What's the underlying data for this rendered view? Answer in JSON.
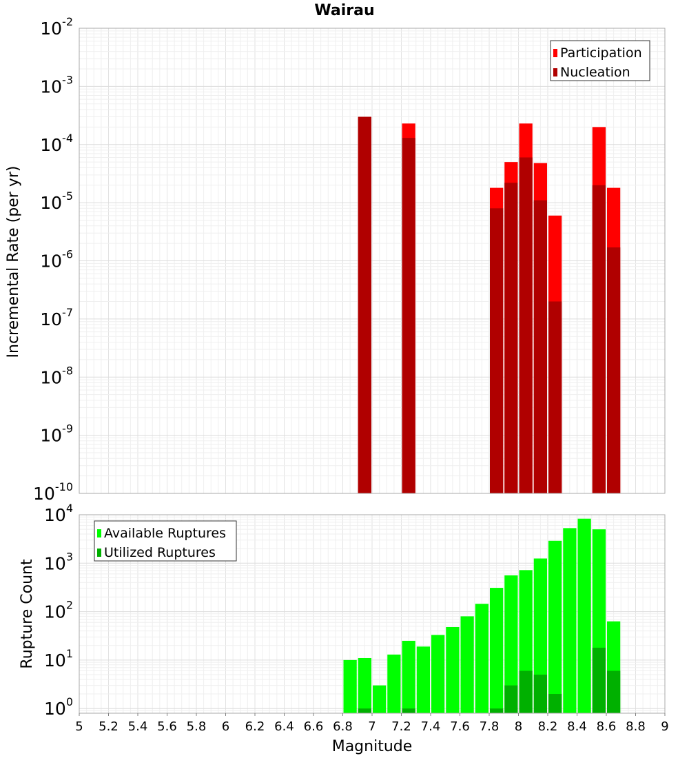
{
  "title": "Wairau",
  "chart_data": [
    {
      "type": "bar",
      "title": "Wairau",
      "ylabel": "Incremental Rate (per yr)",
      "yscale": "log",
      "ylim": [
        1e-10,
        0.01
      ],
      "y_ticks": [
        {
          "base": "10",
          "exp": "-10"
        },
        {
          "base": "10",
          "exp": "-9"
        },
        {
          "base": "10",
          "exp": "-8"
        },
        {
          "base": "10",
          "exp": "-7"
        },
        {
          "base": "10",
          "exp": "-6"
        },
        {
          "base": "10",
          "exp": "-5"
        },
        {
          "base": "10",
          "exp": "-4"
        },
        {
          "base": "10",
          "exp": "-3"
        },
        {
          "base": "10",
          "exp": "-2"
        }
      ],
      "grid": true,
      "legend_position": "top-right",
      "series": [
        {
          "name": "Participation",
          "color": "#ff0000",
          "points": [
            {
              "x": 6.95,
              "y": 0.0003
            },
            {
              "x": 7.25,
              "y": 0.00023
            },
            {
              "x": 7.85,
              "y": 1.8e-05
            },
            {
              "x": 7.95,
              "y": 5e-05
            },
            {
              "x": 8.05,
              "y": 0.00023
            },
            {
              "x": 8.15,
              "y": 4.8e-05
            },
            {
              "x": 8.25,
              "y": 6e-06
            },
            {
              "x": 8.55,
              "y": 0.0002
            },
            {
              "x": 8.65,
              "y": 1.8e-05
            }
          ]
        },
        {
          "name": "Nucleation",
          "color": "#b00000",
          "points": [
            {
              "x": 6.95,
              "y": 0.0003
            },
            {
              "x": 7.25,
              "y": 0.00013
            },
            {
              "x": 7.85,
              "y": 8e-06
            },
            {
              "x": 7.95,
              "y": 2.2e-05
            },
            {
              "x": 8.05,
              "y": 6e-05
            },
            {
              "x": 8.15,
              "y": 1.1e-05
            },
            {
              "x": 8.25,
              "y": 2e-07
            },
            {
              "x": 8.55,
              "y": 2e-05
            },
            {
              "x": 8.65,
              "y": 1.7e-06
            }
          ]
        }
      ]
    },
    {
      "type": "bar",
      "xlabel": "Magnitude",
      "ylabel": "Rupture Count",
      "yscale": "log",
      "xlim": [
        5,
        9
      ],
      "ylim": [
        0.8,
        10000
      ],
      "x_ticks": [
        "5",
        "5.2",
        "5.4",
        "5.6",
        "5.8",
        "6",
        "6.2",
        "6.4",
        "6.6",
        "6.8",
        "7",
        "7.2",
        "7.4",
        "7.6",
        "7.8",
        "8",
        "8.2",
        "8.4",
        "8.6",
        "8.8",
        "9"
      ],
      "y_ticks": [
        {
          "base": "10",
          "exp": "0"
        },
        {
          "base": "10",
          "exp": "1"
        },
        {
          "base": "10",
          "exp": "2"
        },
        {
          "base": "10",
          "exp": "3"
        },
        {
          "base": "10",
          "exp": "4"
        }
      ],
      "grid": true,
      "legend_position": "top-left",
      "series": [
        {
          "name": "Available Ruptures",
          "color": "#00ff00",
          "points": [
            {
              "x": 6.85,
              "y": 10
            },
            {
              "x": 6.95,
              "y": 11
            },
            {
              "x": 7.05,
              "y": 3
            },
            {
              "x": 7.15,
              "y": 13
            },
            {
              "x": 7.25,
              "y": 25
            },
            {
              "x": 7.35,
              "y": 19
            },
            {
              "x": 7.45,
              "y": 33
            },
            {
              "x": 7.55,
              "y": 48
            },
            {
              "x": 7.65,
              "y": 80
            },
            {
              "x": 7.75,
              "y": 145
            },
            {
              "x": 7.85,
              "y": 310
            },
            {
              "x": 7.95,
              "y": 560
            },
            {
              "x": 8.05,
              "y": 720
            },
            {
              "x": 8.15,
              "y": 1250
            },
            {
              "x": 8.25,
              "y": 2900
            },
            {
              "x": 8.35,
              "y": 5300
            },
            {
              "x": 8.45,
              "y": 8300
            },
            {
              "x": 8.55,
              "y": 5000
            },
            {
              "x": 8.65,
              "y": 63
            }
          ]
        },
        {
          "name": "Utilized Ruptures",
          "color": "#00b000",
          "points": [
            {
              "x": 6.95,
              "y": 1
            },
            {
              "x": 7.25,
              "y": 1
            },
            {
              "x": 7.85,
              "y": 1
            },
            {
              "x": 7.95,
              "y": 3
            },
            {
              "x": 8.05,
              "y": 6
            },
            {
              "x": 8.15,
              "y": 5
            },
            {
              "x": 8.25,
              "y": 2
            },
            {
              "x": 8.55,
              "y": 18
            },
            {
              "x": 8.65,
              "y": 6
            }
          ]
        }
      ]
    }
  ]
}
